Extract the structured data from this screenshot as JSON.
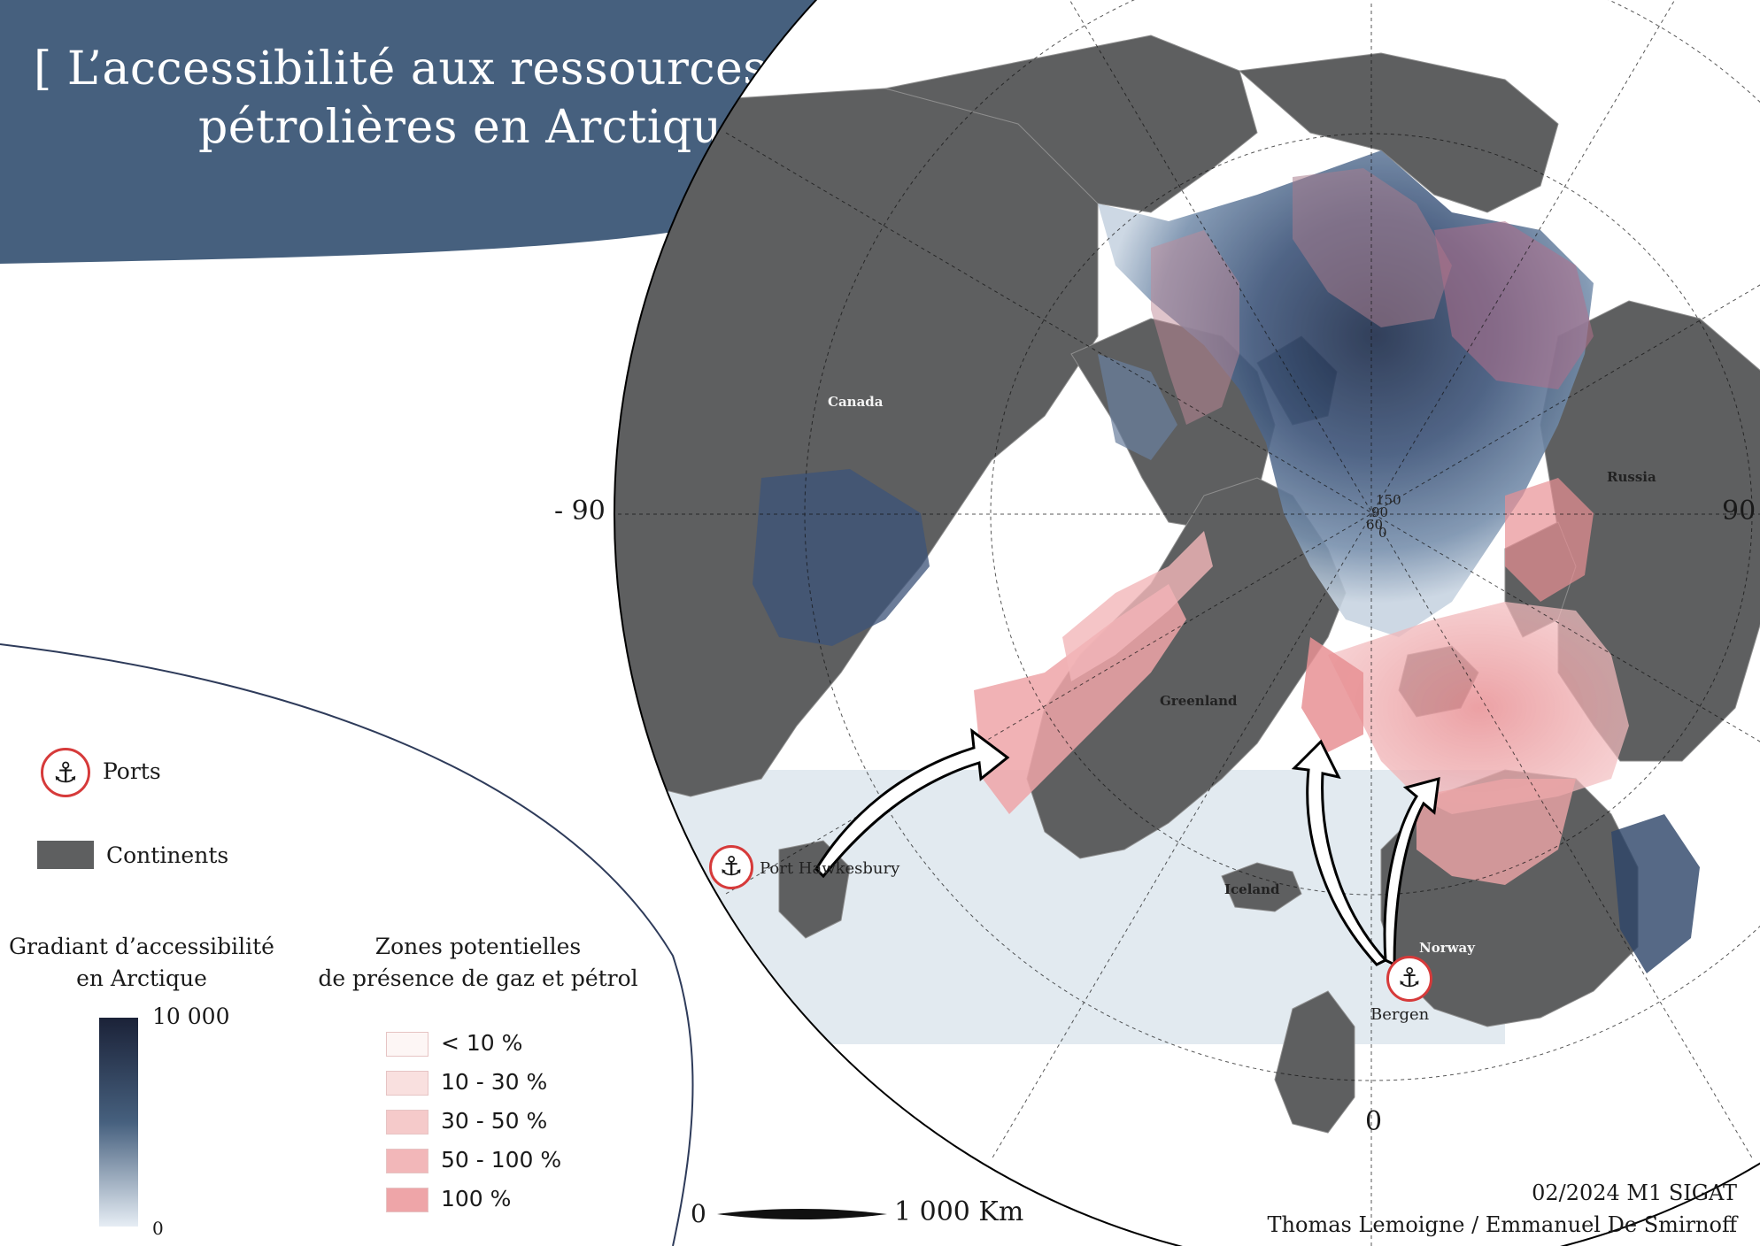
{
  "title": {
    "line1": "[ L’accessibilité aux ressources",
    "line2": "pétrolières en Arctique ]"
  },
  "colors": {
    "banner": "#46607e",
    "continents": "#5e5f60",
    "ocean_light": "#e2eaf0",
    "access_high": "#1b2a48",
    "access_low": "#dfe7ef",
    "oil_100": "#eea5a8",
    "oil_50_100": "#f2b7b9",
    "oil_30_50": "#f5caca",
    "oil_10_30": "#f9e0df",
    "oil_lt_10": "#fdf6f5",
    "port_ring": "#d63a3a"
  },
  "map": {
    "graticule_labels": {
      "west": "- 90",
      "east": "90",
      "south": "0",
      "pole": [
        "150",
        "90",
        "60",
        "0"
      ]
    },
    "places": {
      "canada": "Canada",
      "greenland": "Greenland",
      "russia": "Russia",
      "iceland": "Iceland",
      "norway": "Norway"
    },
    "ports": {
      "port1": "Port Hawkesbury",
      "port2": "Bergen"
    }
  },
  "legend": {
    "ports_label": "Ports",
    "continents_label": "Continents",
    "gradient_title": [
      "Gradiant d’accessibilité",
      "en Arctique"
    ],
    "gradient_max": "10 000",
    "gradient_min": "0",
    "zones_title": [
      "Zones potentielles",
      "de présence de gaz et pétrol"
    ],
    "zones": [
      {
        "label": "< 10 %",
        "color": "#fdf6f5"
      },
      {
        "label": "10 - 30 %",
        "color": "#f9e0df"
      },
      {
        "label": "30 - 50 %",
        "color": "#f5caca"
      },
      {
        "label": "50 - 100 %",
        "color": "#f2b7b9"
      },
      {
        "label": "100 %",
        "color": "#eea5a8"
      }
    ]
  },
  "scale_bar": {
    "start": "0",
    "end": "1 000 Km"
  },
  "credits": {
    "date": "02/2024 M1 SIGAT",
    "authors": "Thomas Lemoigne / Emmanuel De Smirnoff"
  }
}
